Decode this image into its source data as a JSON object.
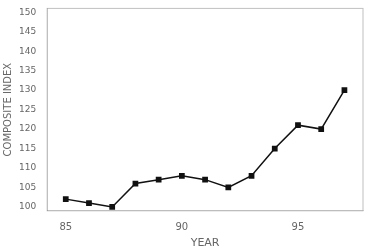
{
  "chart_data": {
    "type": "line",
    "x": [
      85,
      86,
      87,
      88,
      89,
      90,
      91,
      92,
      93,
      94,
      95,
      96,
      97
    ],
    "values": [
      102,
      101,
      100,
      106,
      107,
      108,
      107,
      105,
      108,
      115,
      121,
      120,
      130
    ],
    "xlabel": "YEAR",
    "ylabel": "COMPOSITE INDEX",
    "xlim": [
      84.2,
      97.8
    ],
    "ylim": [
      99,
      151
    ],
    "xticks": [
      85,
      90,
      95
    ],
    "yticks": [
      100,
      105,
      110,
      115,
      120,
      125,
      130,
      135,
      140,
      145,
      150
    ],
    "color": "#111111",
    "marker": "square",
    "grid": false
  }
}
